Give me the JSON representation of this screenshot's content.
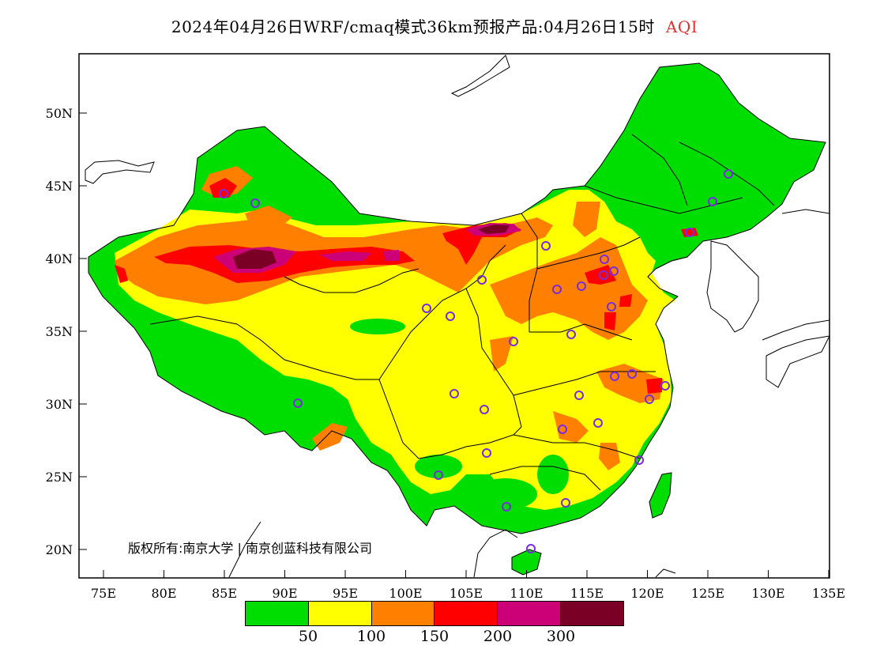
{
  "title": {
    "main": "2024年04月26日WRF/cmaq模式36km预报产品:04月26日15时",
    "variable": "AQI"
  },
  "map": {
    "lat_ticks": [
      "50N",
      "45N",
      "40N",
      "35N",
      "30N",
      "25N",
      "20N"
    ],
    "lon_ticks": [
      "75E",
      "80E",
      "85E",
      "90E",
      "95E",
      "100E",
      "105E",
      "110E",
      "115E",
      "120E",
      "125E",
      "130E",
      "135E"
    ],
    "copyright": "版权所有:南京大学 | 南京创蓝科技有限公司"
  },
  "legend": {
    "colors": [
      "#00dd00",
      "#ffff00",
      "#ff8000",
      "#ff0000",
      "#cc0077",
      "#7a0026"
    ],
    "labels": [
      "50",
      "100",
      "150",
      "200",
      "300"
    ]
  },
  "colors": {
    "good": "#00dd00",
    "moderate": "#ffff00",
    "unhealthy_sensitive": "#ff8000",
    "unhealthy": "#ff0000",
    "very_unhealthy": "#cc0077",
    "hazardous": "#7a0026",
    "station_marker": "#7a2be0"
  }
}
